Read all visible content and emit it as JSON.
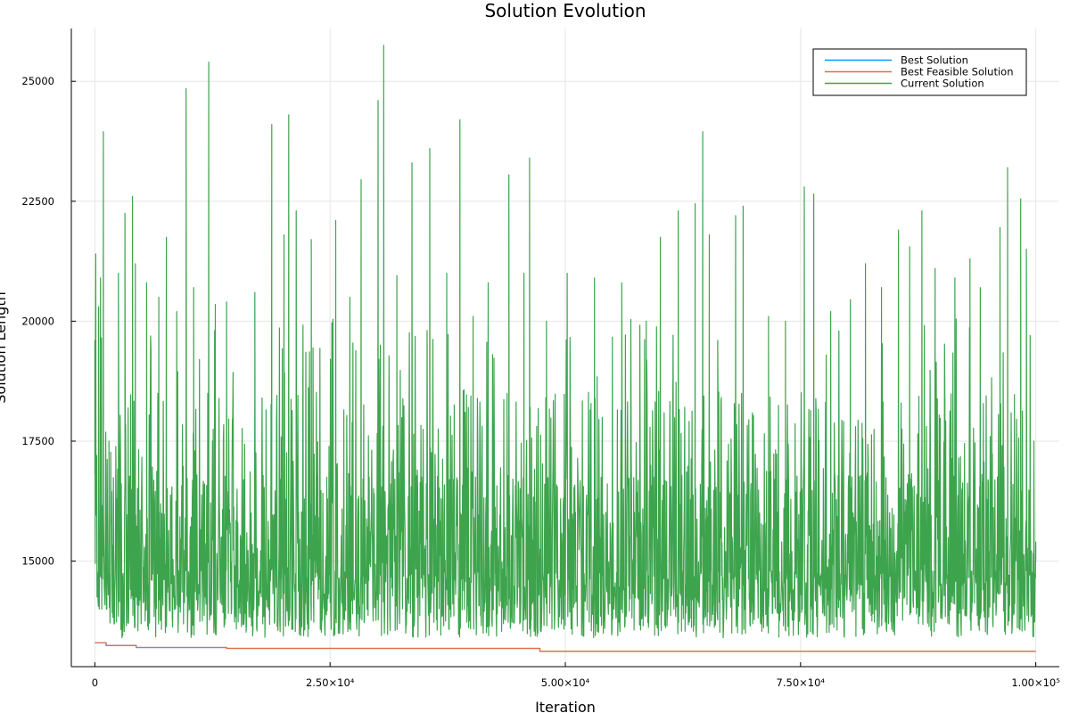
{
  "chart_data": {
    "type": "line",
    "title": "Solution Evolution",
    "xlabel": "Iteration",
    "ylabel": "Solution Length",
    "xlim": [
      -2500,
      102500
    ],
    "ylim": [
      12800,
      26100
    ],
    "x_ticks": [
      {
        "value": 0,
        "label": "0"
      },
      {
        "value": 25000,
        "label": "2.50×10⁴"
      },
      {
        "value": 50000,
        "label": "5.00×10⁴"
      },
      {
        "value": 75000,
        "label": "7.50×10⁴"
      },
      {
        "value": 100000,
        "label": "1.00×10⁵"
      }
    ],
    "y_ticks": [
      {
        "value": 15000,
        "label": "15000"
      },
      {
        "value": 17500,
        "label": "17500"
      },
      {
        "value": 20000,
        "label": "20000"
      },
      {
        "value": 22500,
        "label": "22500"
      },
      {
        "value": 25000,
        "label": "25000"
      }
    ],
    "grid": true,
    "legend_position": "top-right",
    "series": [
      {
        "name": "Best Solution",
        "color": "#009af9",
        "step": true,
        "x": [
          0,
          1200,
          4400,
          14000,
          47300,
          100000
        ],
        "y": [
          13300,
          13240,
          13200,
          13180,
          13120,
          13120
        ]
      },
      {
        "name": "Best Feasible Solution",
        "color": "#e26f46",
        "step": true,
        "x": [
          0,
          1200,
          4400,
          14000,
          47300,
          100000
        ],
        "y": [
          13300,
          13240,
          13200,
          13180,
          13120,
          13120
        ]
      },
      {
        "name": "Current Solution",
        "color": "#3da44d",
        "step": false,
        "x": [
          0,
          100,
          200,
          400,
          600,
          900,
          1500,
          2500,
          3200,
          4000,
          4300,
          5500,
          6800,
          7600,
          8700,
          9700,
          10500,
          12100,
          12800,
          14000,
          17000,
          18800,
          20100,
          20600,
          21400,
          23000,
          25600,
          27100,
          28300,
          30100,
          30700,
          32100,
          33700,
          35600,
          37400,
          38800,
          40200,
          41800,
          44000,
          45600,
          46200,
          48000,
          50200,
          53100,
          56000,
          58600,
          60100,
          62000,
          63800,
          64600,
          65300,
          66200,
          68100,
          68900,
          71600,
          73400,
          75400,
          76400,
          78200,
          80300,
          81900,
          83600,
          85400,
          86600,
          87900,
          89300,
          91400,
          93000,
          94100,
          96200,
          97000,
          98400,
          99000,
          99400,
          99800,
          100000
        ],
        "y": [
          19600,
          21400,
          17200,
          20300,
          20900,
          23950,
          17500,
          21000,
          22250,
          22600,
          21200,
          20800,
          20500,
          21750,
          20200,
          24850,
          20700,
          25400,
          20350,
          20400,
          20600,
          24100,
          21800,
          24300,
          22300,
          21700,
          22100,
          20500,
          22950,
          24600,
          25750,
          20950,
          23300,
          23600,
          21000,
          24200,
          20100,
          20800,
          23050,
          21000,
          23400,
          20000,
          21000,
          20900,
          20800,
          20000,
          21750,
          22300,
          22450,
          23950,
          21800,
          19600,
          22200,
          22400,
          20100,
          20000,
          22800,
          22650,
          20200,
          20450,
          21200,
          20700,
          21900,
          21550,
          22300,
          21100,
          20900,
          21300,
          20700,
          21950,
          23200,
          22550,
          21500,
          19700,
          17500,
          15000
        ]
      }
    ]
  }
}
